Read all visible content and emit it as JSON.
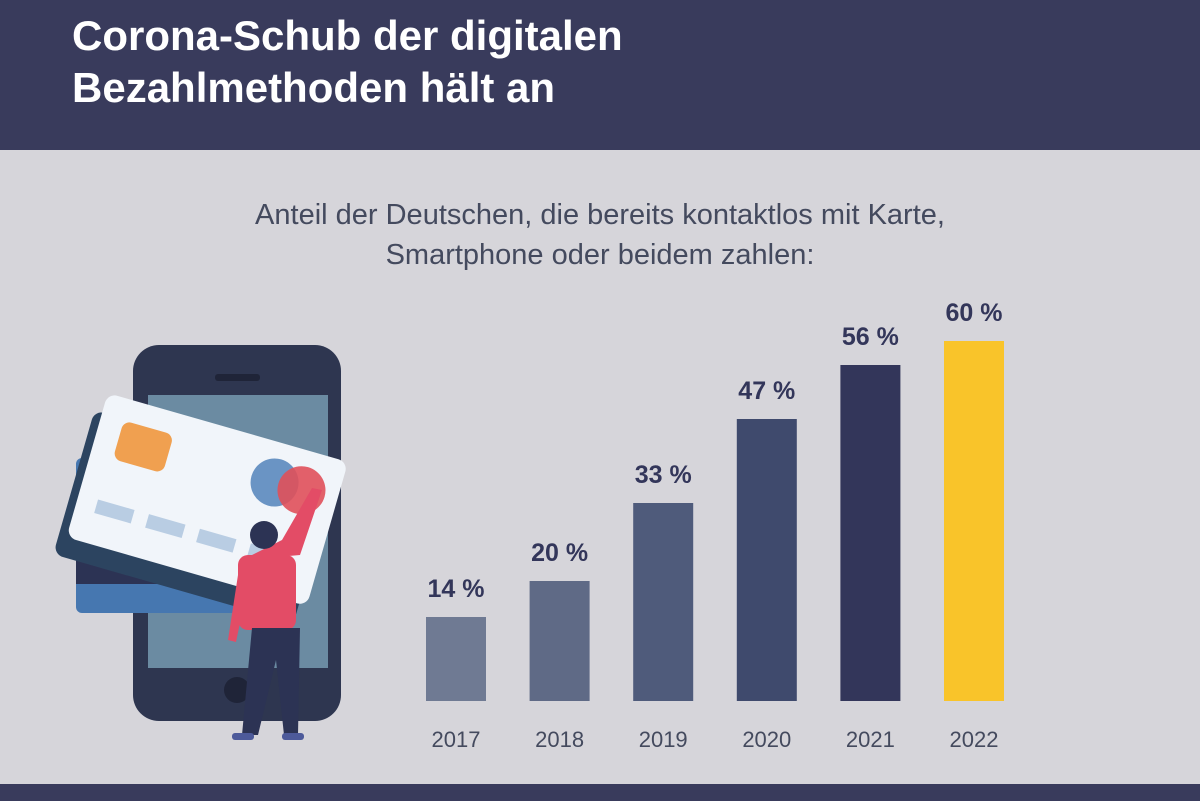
{
  "title": "Corona-Schub der digitalen Bezahlmethoden hält an",
  "chart_data": {
    "type": "bar",
    "title": "Corona-Schub der digitalen Bezahlmethoden hält an",
    "subtitle": "Anteil der Deutschen, die bereits kontaktlos mit Karte, Smartphone oder beidem zahlen:",
    "categories": [
      "2017",
      "2018",
      "2019",
      "2020",
      "2021",
      "2022"
    ],
    "values": [
      14,
      20,
      33,
      47,
      56,
      60
    ],
    "data_labels": [
      "14 %",
      "20 %",
      "33 %",
      "47 %",
      "56 %",
      "60 %"
    ],
    "unit": "%",
    "ylim": [
      0,
      60
    ],
    "grid": false,
    "colors": [
      "#6f7a93",
      "#5f6a86",
      "#4f5b7b",
      "#3f4a6d",
      "#33365a",
      "#f9c42a"
    ]
  }
}
